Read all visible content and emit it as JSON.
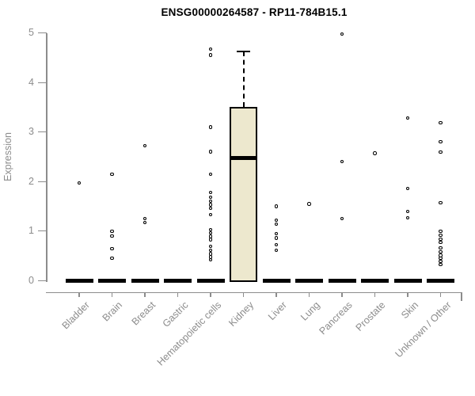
{
  "chart_data": {
    "type": "boxplot",
    "title": "ENSG00000264587 - RP11-784B15.1",
    "ylabel": "Expression",
    "xlabel": "",
    "ylim": [
      0,
      5
    ],
    "yticks": [
      0,
      1,
      2,
      3,
      4,
      5
    ],
    "grid": false,
    "legend_position": "none",
    "categories": [
      "Bladder",
      "Brain",
      "Breast",
      "Gastric",
      "Hematopoietic cells",
      "Kidney",
      "Liver",
      "Lung",
      "Pancreas",
      "Prostate",
      "Skin",
      "Unknown / Other"
    ],
    "series": [
      {
        "name": "Bladder",
        "q1": 0,
        "median": 0,
        "q3": 0,
        "whisker_low": 0,
        "whisker_high": 0,
        "outliers": [
          1.97
        ]
      },
      {
        "name": "Brain",
        "q1": 0,
        "median": 0,
        "q3": 0,
        "whisker_low": 0,
        "whisker_high": 0,
        "outliers": [
          2.15,
          1.0,
          0.9,
          0.65,
          0.45
        ]
      },
      {
        "name": "Breast",
        "q1": 0,
        "median": 0,
        "q3": 0,
        "whisker_low": 0,
        "whisker_high": 0,
        "outliers": [
          2.72,
          1.25,
          1.17
        ]
      },
      {
        "name": "Gastric",
        "q1": 0,
        "median": 0,
        "q3": 0,
        "whisker_low": 0,
        "whisker_high": 0,
        "outliers": []
      },
      {
        "name": "Hematopoietic cells",
        "q1": 0,
        "median": 0,
        "q3": 0,
        "whisker_low": 0,
        "whisker_high": 0,
        "outliers": [
          4.67,
          4.55,
          3.1,
          2.6,
          2.15,
          1.78,
          1.68,
          1.6,
          1.53,
          1.46,
          1.33,
          1.03,
          0.96,
          0.89,
          0.83,
          0.69,
          0.61,
          0.54,
          0.48,
          0.42
        ]
      },
      {
        "name": "Kidney",
        "q1": 0,
        "median": 2.48,
        "q3": 3.5,
        "whisker_low": 0,
        "whisker_high": 4.63,
        "outliers": []
      },
      {
        "name": "Liver",
        "q1": 0,
        "median": 0,
        "q3": 0,
        "whisker_low": 0,
        "whisker_high": 0,
        "outliers": [
          1.5,
          1.22,
          1.14,
          0.95,
          0.86,
          0.73,
          0.61
        ]
      },
      {
        "name": "Lung",
        "q1": 0,
        "median": 0,
        "q3": 0,
        "whisker_low": 0,
        "whisker_high": 0,
        "outliers": [
          1.55
        ]
      },
      {
        "name": "Pancreas",
        "q1": 0,
        "median": 0,
        "q3": 0,
        "whisker_low": 0,
        "whisker_high": 0,
        "outliers": [
          4.97,
          2.4,
          1.25
        ]
      },
      {
        "name": "Prostate",
        "q1": 0,
        "median": 0,
        "q3": 0,
        "whisker_low": 0,
        "whisker_high": 0,
        "outliers": [
          2.57
        ]
      },
      {
        "name": "Skin",
        "q1": 0,
        "median": 0,
        "q3": 0,
        "whisker_low": 0,
        "whisker_high": 0,
        "outliers": [
          3.28,
          1.86,
          1.4,
          1.27
        ]
      },
      {
        "name": "Unknown / Other",
        "q1": 0,
        "median": 0,
        "q3": 0,
        "whisker_low": 0,
        "whisker_high": 0,
        "outliers": [
          3.19,
          2.8,
          2.59,
          1.57,
          1.0,
          0.92,
          0.84,
          0.77,
          0.66,
          0.58,
          0.51,
          0.45,
          0.39,
          0.33
        ]
      }
    ],
    "colors": {
      "box_fill": "#EDE8CE",
      "box_border": "#000000",
      "median": "#000000",
      "outlier": "#000000",
      "axis": "#8C8C8C",
      "tick_label": "#8C8C8C",
      "title": "#000000",
      "background": "#FFFFFF"
    }
  }
}
